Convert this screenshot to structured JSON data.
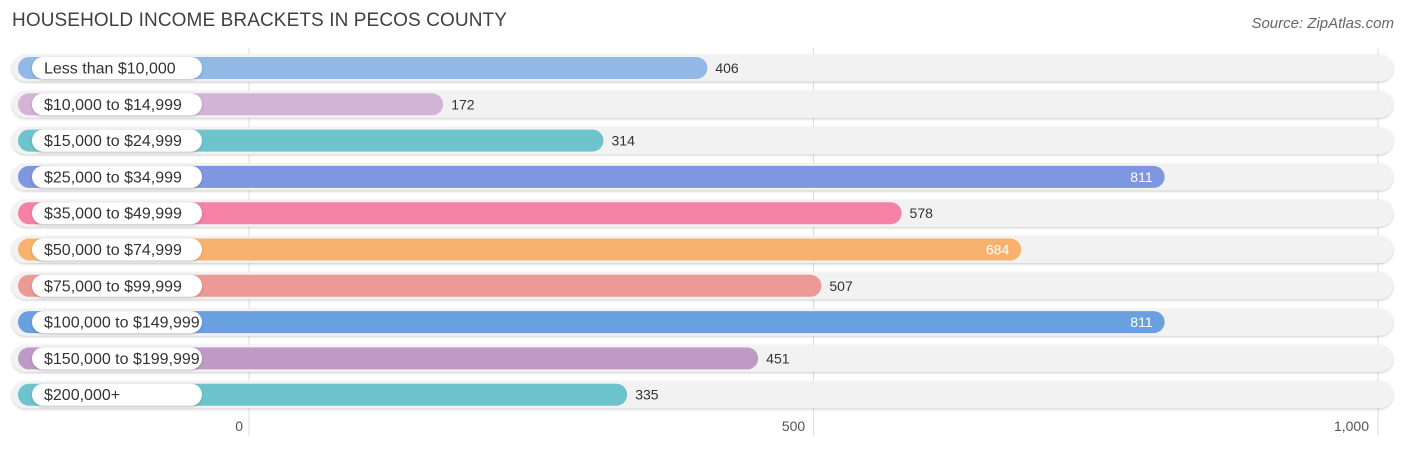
{
  "title": "HOUSEHOLD INCOME BRACKETS IN PECOS COUNTY",
  "source": "Source: ZipAtlas.com",
  "chart_data": {
    "type": "bar",
    "orientation": "horizontal",
    "categories": [
      "Less than $10,000",
      "$10,000 to $14,999",
      "$15,000 to $24,999",
      "$25,000 to $34,999",
      "$35,000 to $49,999",
      "$50,000 to $74,999",
      "$75,000 to $99,999",
      "$100,000 to $149,999",
      "$150,000 to $199,999",
      "$200,000+"
    ],
    "values": [
      406,
      172,
      314,
      811,
      578,
      684,
      507,
      811,
      451,
      335
    ],
    "value_labels": [
      "406",
      "172",
      "314",
      "811",
      "578",
      "684",
      "507",
      "811",
      "451",
      "335"
    ],
    "colors": [
      "#92b8e6",
      "#d3b3d6",
      "#6ec4cc",
      "#7f96e0",
      "#f581a6",
      "#f9b26e",
      "#ec9a96",
      "#6ba0e0",
      "#bf9ac6",
      "#6ec4cc"
    ],
    "xlim": [
      0,
      1000
    ],
    "xticks": [
      0,
      500,
      1000
    ],
    "xtick_labels": [
      "0",
      "500",
      "1,000"
    ],
    "grid": true,
    "xlabel": "",
    "ylabel": ""
  }
}
